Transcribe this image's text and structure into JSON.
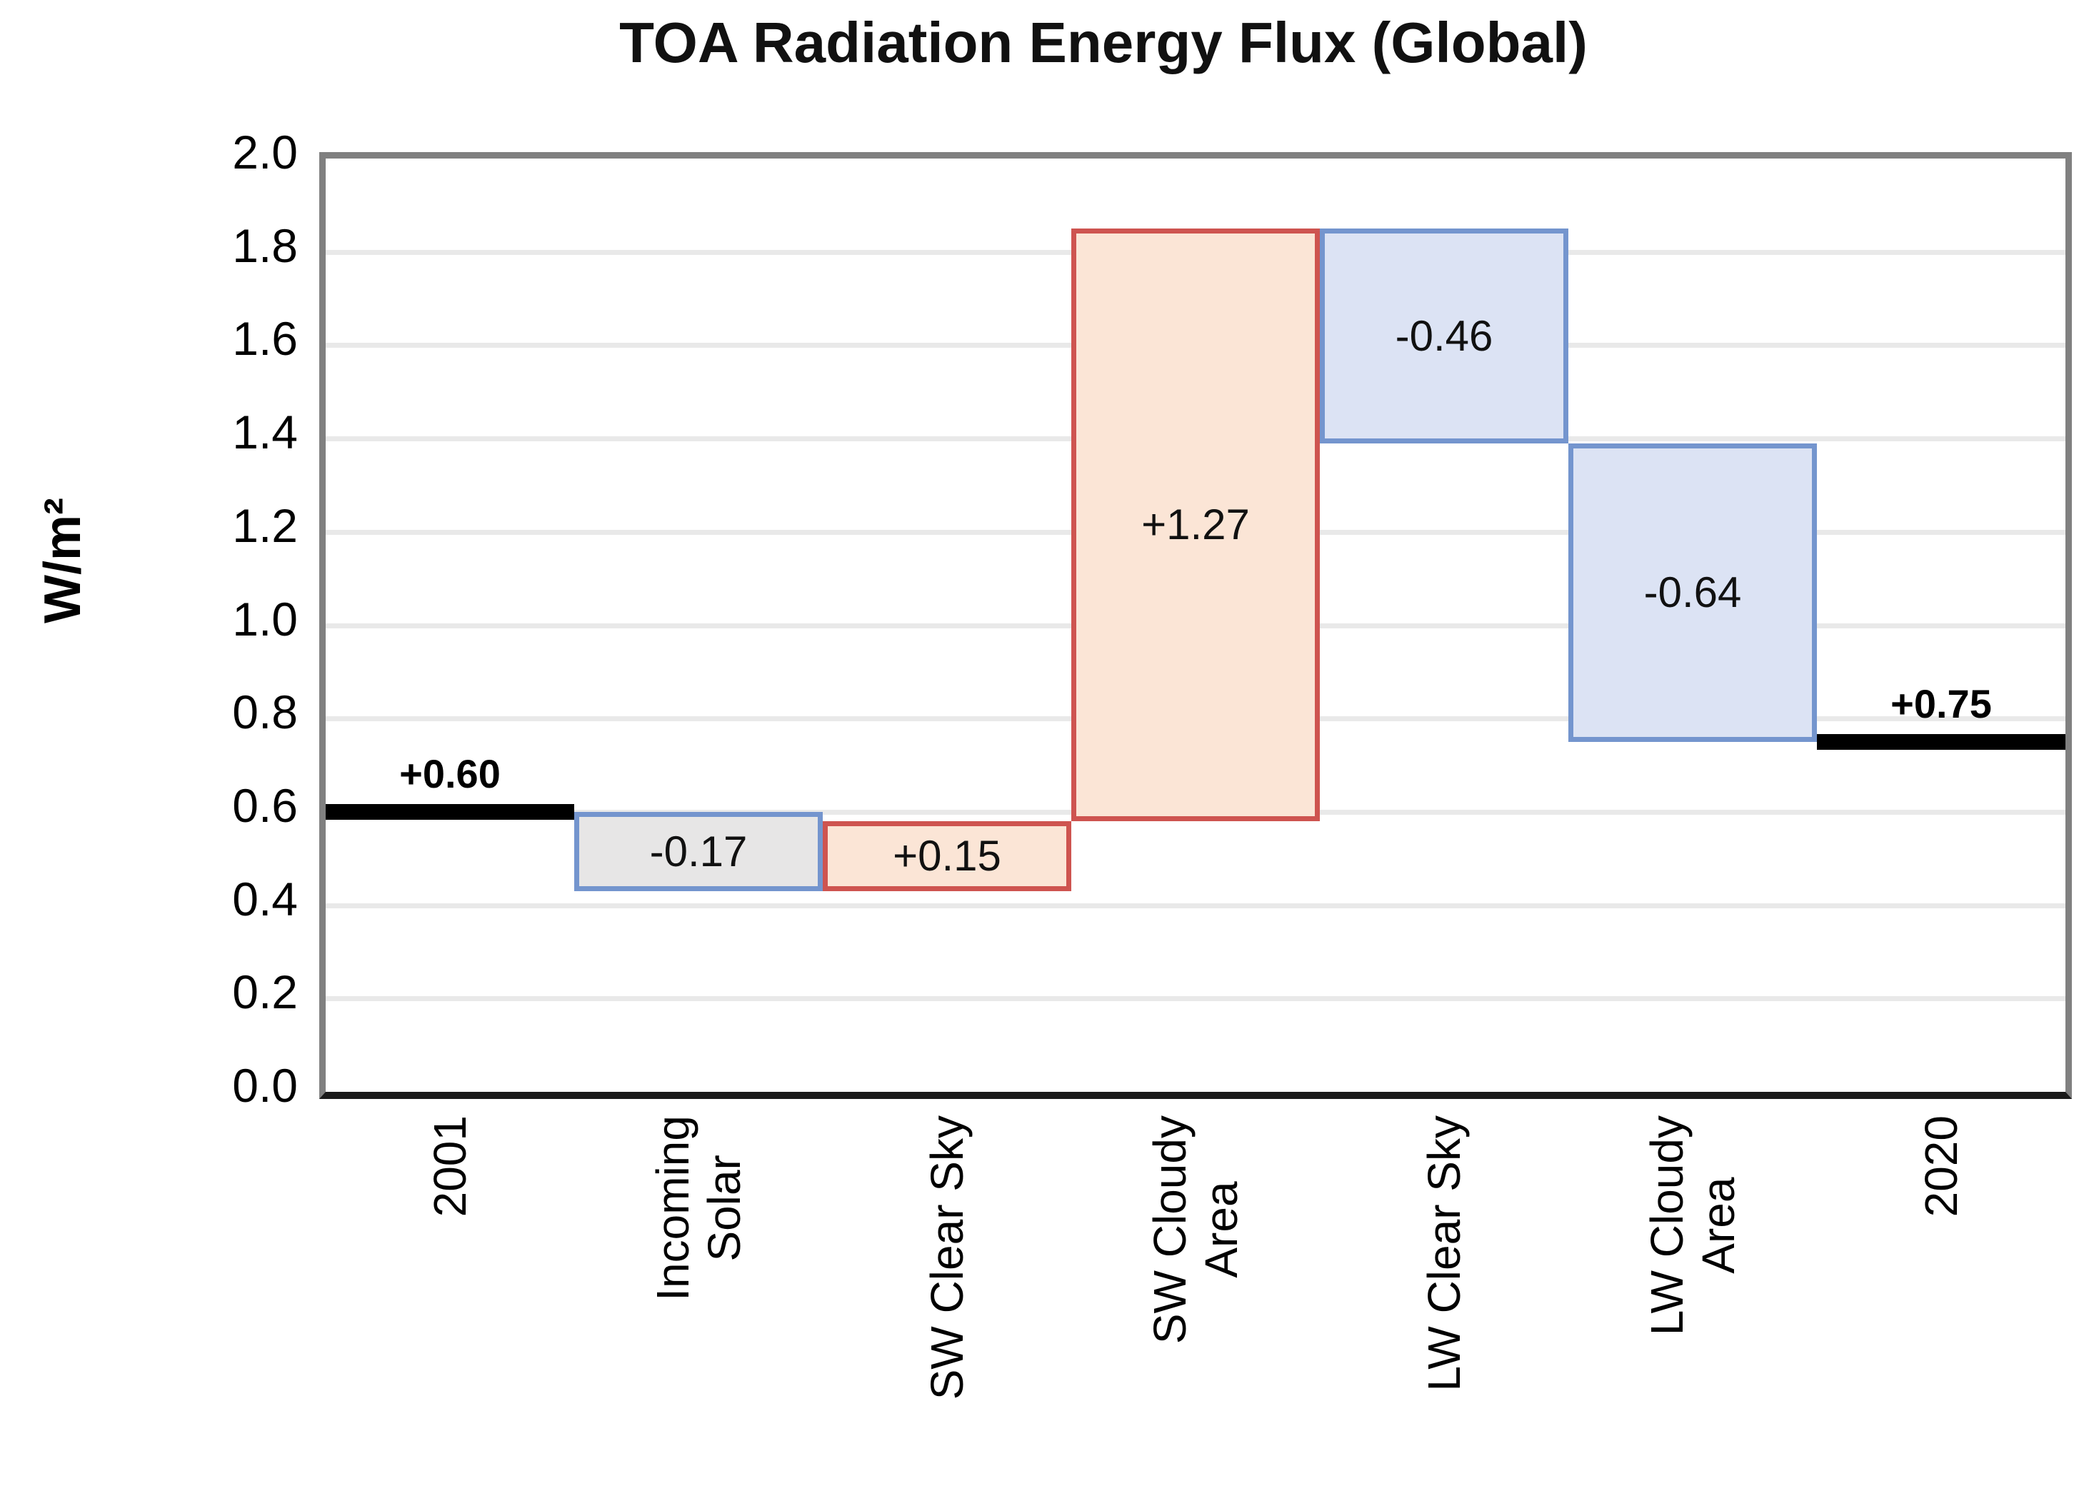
{
  "chart_data": {
    "type": "bar",
    "subtype": "waterfall",
    "title": "TOA Radiation Energy Flux (Global)",
    "ylabel": "W/m²",
    "xlabel": "",
    "ylim": [
      0.0,
      2.0
    ],
    "ytick_step": 0.2,
    "yticks": [
      "0.0",
      "0.2",
      "0.4",
      "0.6",
      "0.8",
      "1.0",
      "1.2",
      "1.4",
      "1.6",
      "1.8",
      "2.0"
    ],
    "grid": true,
    "legend": false,
    "categories": [
      "2001",
      "Incoming Solar",
      "SW Clear Sky",
      "SW Cloudy Area",
      "LW Clear Sky",
      "LW Cloudy Area",
      "2020"
    ],
    "bars": [
      {
        "name": "2001",
        "category_lines": [
          "2001"
        ],
        "kind": "anchor",
        "value": 0.6,
        "display": "+0.60",
        "start": 0.6,
        "end": 0.6
      },
      {
        "name": "incoming-solar",
        "category_lines": [
          "Incoming",
          "Solar"
        ],
        "kind": "delta",
        "value": -0.17,
        "display": "-0.17",
        "start": 0.6,
        "end": 0.43,
        "fill": "#e7e6e6",
        "border": "#7495ce"
      },
      {
        "name": "sw-clear-sky",
        "category_lines": [
          "SW Clear Sky"
        ],
        "kind": "delta",
        "value": 0.15,
        "display": "+0.15",
        "start": 0.43,
        "end": 0.58,
        "fill": "#fbe5d6",
        "border": "#ce5450"
      },
      {
        "name": "sw-cloudy-area",
        "category_lines": [
          "SW Cloudy",
          "Area"
        ],
        "kind": "delta",
        "value": 1.27,
        "display": "+1.27",
        "start": 0.58,
        "end": 1.85,
        "fill": "#fbe5d6",
        "border": "#ce5450"
      },
      {
        "name": "lw-clear-sky",
        "category_lines": [
          "LW Clear Sky"
        ],
        "kind": "delta",
        "value": -0.46,
        "display": "-0.46",
        "start": 1.85,
        "end": 1.39,
        "fill": "#dce3f4",
        "border": "#7495ce"
      },
      {
        "name": "lw-cloudy-area",
        "category_lines": [
          "LW Cloudy",
          "Area"
        ],
        "kind": "delta",
        "value": -0.64,
        "display": "-0.64",
        "start": 1.39,
        "end": 0.75,
        "fill": "#dce3f4",
        "border": "#7495ce"
      },
      {
        "name": "2020",
        "category_lines": [
          "2020"
        ],
        "kind": "anchor",
        "value": 0.75,
        "display": "+0.75",
        "start": 0.75,
        "end": 0.75
      }
    ],
    "colors": {
      "anchor_bar": "#000000",
      "gridline": "#e9e9e9",
      "plot_border": "#808080",
      "axis_line": "#1a1a1a",
      "increase_fill": "#fbe5d6",
      "increase_border": "#ce5450",
      "decrease_fill": "#dce3f4",
      "decrease_border": "#7495ce",
      "neutral_fill": "#e7e6e6"
    }
  }
}
